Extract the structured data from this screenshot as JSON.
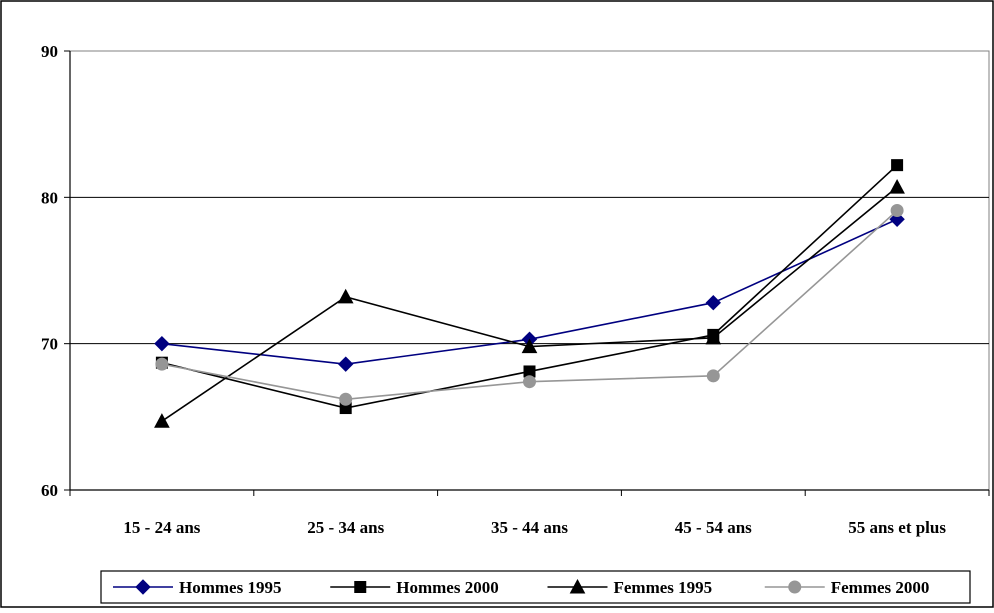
{
  "chart_data": {
    "type": "line",
    "categories": [
      "15 - 24 ans",
      "25 - 34 ans",
      "35 - 44 ans",
      "45 - 54 ans",
      "55 ans et plus"
    ],
    "ylim": [
      60,
      90
    ],
    "yticks": [
      "60",
      "70",
      "80",
      "90"
    ],
    "grid": true,
    "legend_position": "bottom",
    "series": [
      {
        "name": "Hommes 1995",
        "values": [
          70.0,
          68.6,
          70.3,
          72.8,
          78.5
        ],
        "color": "#000080",
        "marker": "diamond"
      },
      {
        "name": "Hommes 2000",
        "values": [
          68.7,
          65.6,
          68.1,
          70.6,
          82.2
        ],
        "color": "#000000",
        "marker": "square"
      },
      {
        "name": "Femmes 1995",
        "values": [
          64.7,
          73.2,
          69.8,
          70.4,
          80.7
        ],
        "color": "#000000",
        "marker": "triangle"
      },
      {
        "name": "Femmes 2000",
        "values": [
          68.6,
          66.2,
          67.4,
          67.8,
          79.1
        ],
        "color": "#969696",
        "marker": "circle"
      }
    ]
  }
}
